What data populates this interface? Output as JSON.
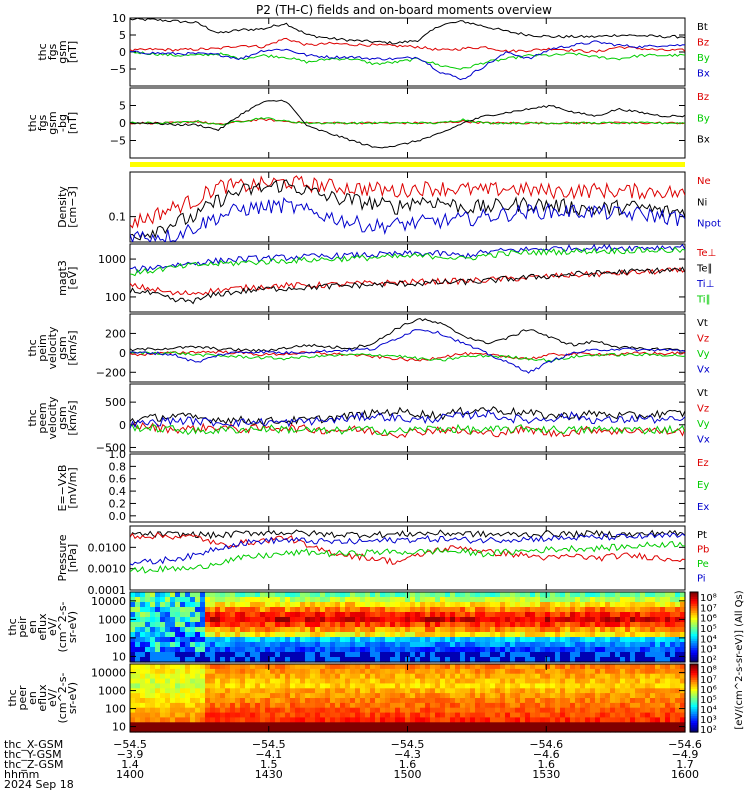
{
  "title": "P2 (TH-C) fields and on-board moments overview",
  "chart_data": [
    {
      "type": "line",
      "panel": "fgs",
      "ylabel": [
        "thc",
        "fgs",
        "gsm",
        "[nT]"
      ],
      "ylim": [
        -10,
        10
      ],
      "yticks": [
        "10",
        "5",
        "0",
        "−5"
      ],
      "ytick_values": [
        10,
        5,
        0,
        -5
      ],
      "series": [
        {
          "name": "Bt",
          "color": "#000000",
          "values": [
            9.6,
            9.5,
            9.1,
            8.6,
            5.5,
            6.5,
            6.8,
            8.5,
            5.0,
            4.0,
            3.4,
            3.0,
            2.6,
            3.5,
            8.0,
            9.0,
            7.5,
            6.0,
            5.0,
            4.5,
            4.5,
            4.5,
            5.0,
            4.8,
            4.5,
            4.5
          ]
        },
        {
          "name": "Bz",
          "color": "#dd0000",
          "values": [
            0.4,
            0.8,
            0.6,
            0.8,
            1.0,
            2.0,
            1.5,
            4.0,
            2.0,
            2.5,
            2.2,
            2.0,
            1.8,
            1.5,
            0.5,
            1.0,
            1.5,
            0.2,
            0.5,
            1.0,
            0.5,
            0.0,
            1.5,
            1.0,
            0.5,
            0.5
          ]
        },
        {
          "name": "By",
          "color": "#00cc00",
          "values": [
            0.0,
            -0.5,
            -1.0,
            -1.0,
            -0.5,
            -2.0,
            -1.0,
            -1.5,
            -3.0,
            -2.0,
            -2.0,
            -3.5,
            -3.0,
            -2.0,
            -4.0,
            -5.0,
            -3.0,
            -2.0,
            -1.0,
            -1.0,
            -0.5,
            -1.5,
            -2.0,
            -1.0,
            -1.0,
            -1.0
          ]
        },
        {
          "name": "Bx",
          "color": "#0000cc",
          "values": [
            0.0,
            -0.3,
            -0.5,
            -0.5,
            -0.8,
            -2.0,
            0.5,
            0.8,
            -1.0,
            -1.5,
            -1.5,
            -2.0,
            -2.0,
            -1.5,
            -6.0,
            -8.0,
            -4.0,
            0.0,
            -2.0,
            1.0,
            2.0,
            3.0,
            2.0,
            1.5,
            2.0,
            2.0
          ]
        }
      ]
    },
    {
      "type": "line",
      "panel": "fgs_dsl",
      "ylabel": [
        "thc",
        "fgs",
        "gsm",
        "-bg",
        "[nT]"
      ],
      "ylim": [
        -10,
        10
      ],
      "yticks": [
        "5",
        "0",
        "−5"
      ],
      "ytick_values": [
        5,
        0,
        -5
      ],
      "series": [
        {
          "name": "Bz",
          "color": "#dd0000",
          "values": [
            0.0,
            0.0,
            0.0,
            0.5,
            -0.5,
            0.5,
            1.0,
            0.5,
            0.0,
            0.0,
            0.0,
            0.0,
            0.0,
            0.0,
            0.0,
            0.5,
            0.0,
            0.0,
            0.0,
            0.0,
            0.0,
            0.0,
            0.0,
            0.0,
            0.0,
            0.0
          ]
        },
        {
          "name": "By",
          "color": "#00cc00",
          "values": [
            0.0,
            0.0,
            0.0,
            0.5,
            -0.5,
            0.5,
            1.5,
            0.5,
            0.0,
            0.0,
            0.0,
            0.0,
            0.0,
            0.0,
            0.0,
            1.0,
            0.0,
            0.0,
            0.0,
            0.0,
            0.0,
            0.0,
            0.0,
            0.0,
            0.0,
            0.0
          ]
        },
        {
          "name": "Bx",
          "color": "#000000",
          "values": [
            0.0,
            0.0,
            -0.5,
            -0.5,
            -2.0,
            2.5,
            6.0,
            6.5,
            -1.0,
            -3.0,
            -5.0,
            -7.0,
            -6.5,
            -5.0,
            -3.0,
            0.0,
            2.0,
            3.0,
            4.0,
            5.0,
            3.0,
            2.0,
            4.0,
            3.0,
            2.0,
            2.0
          ]
        }
      ]
    },
    {
      "type": "line",
      "panel": "density",
      "ylabel": [
        "Density",
        "[cm−3]"
      ],
      "scale": "log",
      "ylim": [
        0.04,
        0.5
      ],
      "yticks": [
        "0.1"
      ],
      "ytick_values": [
        0.1
      ],
      "series": [
        {
          "name": "Ne",
          "color": "#dd0000",
          "values": [
            0.08,
            0.1,
            0.14,
            0.18,
            0.3,
            0.3,
            0.32,
            0.35,
            0.32,
            0.3,
            0.28,
            0.27,
            0.25,
            0.28,
            0.28,
            0.27,
            0.25,
            0.28,
            0.26,
            0.25,
            0.25,
            0.26,
            0.25,
            0.25,
            0.25,
            0.22
          ]
        },
        {
          "name": "Ni",
          "color": "#000000",
          "values": [
            0.05,
            0.06,
            0.08,
            0.1,
            0.18,
            0.25,
            0.28,
            0.32,
            0.25,
            0.2,
            0.18,
            0.16,
            0.14,
            0.18,
            0.17,
            0.14,
            0.14,
            0.15,
            0.16,
            0.15,
            0.14,
            0.13,
            0.14,
            0.14,
            0.12,
            0.12
          ]
        },
        {
          "name": "Npot",
          "color": "#0000cc",
          "values": [
            0.05,
            0.05,
            0.05,
            0.07,
            0.1,
            0.13,
            0.14,
            0.15,
            0.12,
            0.1,
            0.08,
            0.07,
            0.075,
            0.08,
            0.085,
            0.09,
            0.1,
            0.11,
            0.12,
            0.12,
            0.12,
            0.12,
            0.11,
            0.11,
            0.1,
            0.09
          ]
        }
      ]
    },
    {
      "type": "line",
      "panel": "temperature",
      "ylabel": [
        "magt3",
        "[eV]"
      ],
      "scale": "log",
      "ylim": [
        40,
        2500
      ],
      "yticks": [
        "1000",
        "100"
      ],
      "ytick_values": [
        1000,
        100
      ],
      "series": [
        {
          "name": "Te⊥",
          "color": "#dd0000",
          "values": [
            200,
            160,
            120,
            130,
            150,
            170,
            190,
            200,
            200,
            210,
            220,
            230,
            240,
            250,
            260,
            260,
            280,
            300,
            320,
            350,
            380,
            400,
            420,
            450,
            480,
            500
          ]
        },
        {
          "name": "Te∥",
          "color": "#000000",
          "values": [
            150,
            120,
            80,
            80,
            120,
            140,
            160,
            170,
            180,
            190,
            200,
            210,
            220,
            230,
            240,
            250,
            260,
            300,
            330,
            360,
            400,
            420,
            450,
            480,
            500,
            520
          ]
        },
        {
          "name": "Ti⊥",
          "color": "#0000cc",
          "values": [
            500,
            600,
            700,
            800,
            900,
            1000,
            1050,
            1100,
            1150,
            1200,
            1250,
            1300,
            1350,
            1400,
            1400,
            1200,
            1500,
            1700,
            1800,
            1900,
            1950,
            2000,
            2000,
            2000,
            2050,
            2100
          ]
        },
        {
          "name": "Ti∥",
          "color": "#00cc00",
          "values": [
            400,
            500,
            600,
            700,
            750,
            800,
            850,
            900,
            950,
            1000,
            1050,
            1100,
            1150,
            1200,
            1200,
            1000,
            1250,
            1400,
            1500,
            1550,
            1600,
            1650,
            1650,
            1700,
            1700,
            1700
          ]
        }
      ]
    },
    {
      "type": "line",
      "panel": "peim_velocity",
      "ylabel": [
        "thc",
        "peim",
        "velocity",
        "gsm",
        "[km/s]"
      ],
      "ylim": [
        -300,
        400
      ],
      "yticks": [
        "200",
        "0",
        "−200"
      ],
      "ytick_values": [
        200,
        0,
        -200
      ],
      "series": [
        {
          "name": "Vt",
          "color": "#000000",
          "values": [
            30,
            40,
            50,
            60,
            40,
            30,
            20,
            50,
            80,
            60,
            50,
            100,
            250,
            350,
            300,
            180,
            100,
            150,
            250,
            150,
            80,
            120,
            60,
            40,
            40,
            30
          ]
        },
        {
          "name": "Vz",
          "color": "#dd0000",
          "values": [
            -20,
            -10,
            0,
            10,
            10,
            0,
            -20,
            -10,
            0,
            -10,
            -20,
            -40,
            -60,
            -80,
            -40,
            -10,
            -20,
            -40,
            -60,
            -20,
            -10,
            -10,
            -20,
            0,
            -10,
            0
          ]
        },
        {
          "name": "Vy",
          "color": "#00cc00",
          "values": [
            0,
            0,
            0,
            -20,
            -30,
            -40,
            -50,
            -60,
            -40,
            -30,
            -20,
            -20,
            -30,
            -60,
            -80,
            -40,
            -30,
            -40,
            -60,
            -80,
            -40,
            -20,
            -20,
            -20,
            -20,
            -30
          ]
        },
        {
          "name": "Vx",
          "color": "#0000cc",
          "values": [
            0,
            0,
            -20,
            -100,
            -20,
            10,
            10,
            0,
            10,
            20,
            30,
            40,
            150,
            250,
            200,
            100,
            0,
            -100,
            -200,
            -80,
            0,
            30,
            40,
            30,
            30,
            20
          ]
        }
      ]
    },
    {
      "type": "line",
      "panel": "peem_velocity",
      "ylabel": [
        "thc",
        "peem",
        "velocity",
        "gsm",
        "[km/s]"
      ],
      "ylim": [
        -600,
        900
      ],
      "yticks": [
        "500",
        "0",
        "−500"
      ],
      "ytick_values": [
        500,
        0,
        -500
      ],
      "series": [
        {
          "name": "Vt",
          "color": "#000000",
          "values": [
            100,
            150,
            200,
            150,
            120,
            100,
            80,
            90,
            100,
            150,
            200,
            250,
            300,
            250,
            200,
            300,
            350,
            300,
            250,
            200,
            200,
            250,
            200,
            200,
            250,
            250
          ]
        },
        {
          "name": "Vz",
          "color": "#dd0000",
          "values": [
            0,
            -50,
            -100,
            -80,
            -50,
            -100,
            -80,
            -50,
            -100,
            -120,
            -100,
            -150,
            -200,
            -150,
            -100,
            -150,
            -200,
            -150,
            -100,
            -200,
            -150,
            -100,
            -150,
            -100,
            -150,
            -150
          ]
        },
        {
          "name": "Vy",
          "color": "#00cc00",
          "values": [
            -50,
            -80,
            -100,
            -150,
            -120,
            -100,
            -80,
            -100,
            -120,
            -150,
            -100,
            -120,
            -150,
            -100,
            -80,
            -100,
            -120,
            -100,
            -80,
            -100,
            -120,
            -100,
            -100,
            -120,
            -100,
            -100
          ]
        },
        {
          "name": "Vx",
          "color": "#0000cc",
          "values": [
            0,
            50,
            100,
            80,
            50,
            50,
            60,
            50,
            80,
            100,
            150,
            200,
            150,
            100,
            150,
            200,
            250,
            150,
            100,
            150,
            200,
            100,
            100,
            150,
            100,
            100
          ]
        }
      ]
    },
    {
      "type": "line",
      "panel": "efield",
      "ylabel": [
        "E=−VxB",
        "[mV/m]"
      ],
      "ylim": [
        -0.1,
        1.0
      ],
      "yticks": [
        "1.0",
        "0.8",
        "0.6",
        "0.4",
        "0.2",
        "0.0"
      ],
      "ytick_values": [
        1.0,
        0.8,
        0.6,
        0.4,
        0.2,
        0.0
      ],
      "series": [
        {
          "name": "Ez",
          "color": "#dd0000",
          "values": []
        },
        {
          "name": "Ey",
          "color": "#00cc00",
          "values": []
        },
        {
          "name": "Ex",
          "color": "#0000cc",
          "values": []
        }
      ]
    },
    {
      "type": "line",
      "panel": "pressure",
      "ylabel": [
        "Pressure",
        "[nPa]"
      ],
      "scale": "log",
      "ylim": [
        0.0001,
        0.1
      ],
      "yticks": [
        "0.0100",
        "0.0010",
        "0.0001"
      ],
      "ytick_values": [
        0.01,
        0.001,
        0.0001
      ],
      "series": [
        {
          "name": "Pt",
          "color": "#000000",
          "values": [
            0.04,
            0.04,
            0.04,
            0.04,
            0.035,
            0.045,
            0.05,
            0.05,
            0.045,
            0.04,
            0.04,
            0.04,
            0.04,
            0.045,
            0.045,
            0.045,
            0.04,
            0.04,
            0.04,
            0.045,
            0.04,
            0.045,
            0.04,
            0.04,
            0.05,
            0.04
          ]
        },
        {
          "name": "Pb",
          "color": "#dd0000",
          "values": [
            0.035,
            0.035,
            0.033,
            0.03,
            0.012,
            0.016,
            0.02,
            0.03,
            0.01,
            0.006,
            0.004,
            0.003,
            0.002,
            0.004,
            0.008,
            0.01,
            0.006,
            0.005,
            0.004,
            0.003,
            0.004,
            0.003,
            0.004,
            0.004,
            0.003,
            0.003
          ]
        },
        {
          "name": "Pe",
          "color": "#00cc00",
          "values": [
            0.0008,
            0.0009,
            0.001,
            0.001,
            0.002,
            0.003,
            0.004,
            0.005,
            0.006,
            0.005,
            0.005,
            0.006,
            0.006,
            0.006,
            0.007,
            0.006,
            0.005,
            0.006,
            0.007,
            0.008,
            0.009,
            0.009,
            0.01,
            0.012,
            0.014,
            0.015
          ]
        },
        {
          "name": "Pi",
          "color": "#0000cc",
          "values": [
            0.002,
            0.002,
            0.003,
            0.004,
            0.01,
            0.015,
            0.02,
            0.022,
            0.02,
            0.018,
            0.018,
            0.02,
            0.022,
            0.024,
            0.025,
            0.022,
            0.022,
            0.024,
            0.025,
            0.026,
            0.028,
            0.03,
            0.03,
            0.032,
            0.033,
            0.035
          ]
        }
      ]
    },
    {
      "type": "heatmap",
      "panel": "peir_eflux",
      "ylabel": [
        "thc",
        "peir",
        "en",
        "eflux",
        "eV/",
        "(cm^2-s-",
        "sr-eV)"
      ],
      "scale": "log",
      "ylim": [
        5,
        30000
      ],
      "yticks": [
        "10000",
        "1000",
        "100",
        "10"
      ],
      "ytick_values": [
        10000,
        1000,
        100,
        10
      ]
    },
    {
      "type": "heatmap",
      "panel": "peer_eflux",
      "ylabel": [
        "thc",
        "peer",
        "en",
        "eflux",
        "eV/",
        "(cm^2-s-",
        "sr-eV)"
      ],
      "scale": "log",
      "ylim": [
        5,
        30000
      ],
      "yticks": [
        "10000",
        "1000",
        "100",
        "10"
      ],
      "ytick_values": [
        10000,
        1000,
        100,
        10
      ]
    }
  ],
  "colorbar": {
    "ticks": [
      "10⁸",
      "10⁷",
      "10⁶",
      "10⁵",
      "10⁴",
      "10³",
      "10²"
    ],
    "ticks2": [
      "10⁸",
      "10⁷",
      "10⁶",
      "10⁵",
      "10⁴",
      "10³",
      "10²"
    ],
    "label": "[eV/(cm^2-s-sr-eV)] (All Qs)"
  },
  "x_axis": {
    "labels": [
      "thc_X-GSM",
      "thc_Y-GSM",
      "thc_Z-GSM",
      "hhmm",
      "2024 Sep 18"
    ],
    "columns": [
      [
        "−54.5",
        "−3.9",
        "1.4",
        "1400"
      ],
      [
        "−54.5",
        "−4.1",
        "1.5",
        "1430"
      ],
      [
        "−54.5",
        "−4.3",
        "1.6",
        "1500"
      ],
      [
        "−54.6",
        "−4.6",
        "1.6",
        "1530"
      ],
      [
        "−54.6",
        "−4.9",
        "1.7",
        "1600"
      ]
    ]
  }
}
